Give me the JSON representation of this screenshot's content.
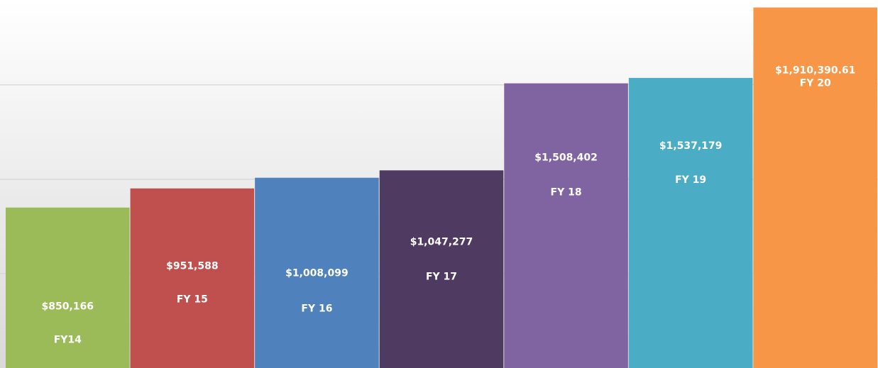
{
  "chart_data": {
    "type": "bar",
    "categories": [
      "FY14",
      "FY 15",
      "FY 16",
      "FY 17",
      "FY 18",
      "FY 19",
      "FY 20"
    ],
    "values": [
      850166,
      951588,
      1008099,
      1047277,
      1508402,
      1537179,
      1910390.61
    ],
    "value_labels": [
      "$850,166",
      "$951,588",
      "$1,008,099",
      "$1,047,277",
      "$1,508,402",
      "$1,537,179",
      "$1,910,390.61"
    ],
    "colors": [
      "#9bbb59",
      "#c0504d",
      "#4f81bd",
      "#4f3b62",
      "#8064a2",
      "#4bacc6",
      "#f79646"
    ],
    "ylim": [
      0,
      1950000
    ],
    "gridlines": [
      500000,
      1000000,
      1500000
    ],
    "grid": true
  }
}
